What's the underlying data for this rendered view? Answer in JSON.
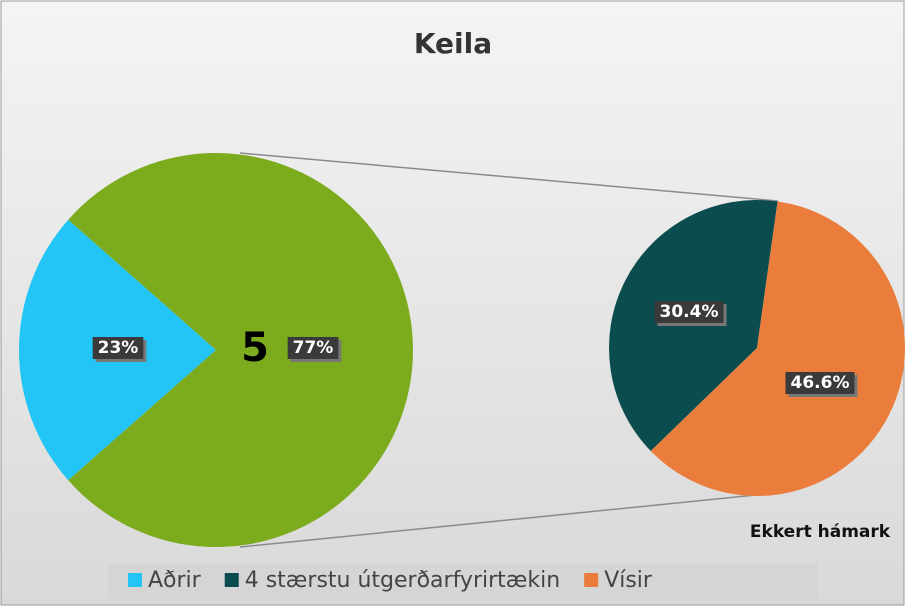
{
  "chart_data": {
    "type": "pie_of_pie",
    "title": "Keila",
    "annotations": [
      "5",
      "Ekkert hámark"
    ],
    "categories": [
      "Aðrir",
      "4 stærstu útgerðarfyrirtækin",
      "Vísir"
    ],
    "colors": [
      "#22c5f5",
      "#0b4d4f",
      "#ea7d3c"
    ],
    "main_pie": {
      "values": [
        23,
        77
      ],
      "value_labels": [
        "23%",
        "77%"
      ],
      "colors": [
        "#22c5f5",
        "#7dab1e"
      ]
    },
    "secondary_pie": {
      "values": [
        30.4,
        46.6
      ],
      "value_labels": [
        "30.4%",
        "46.6%"
      ],
      "colors": [
        "#0b4d4f",
        "#ea7d3c"
      ]
    }
  }
}
